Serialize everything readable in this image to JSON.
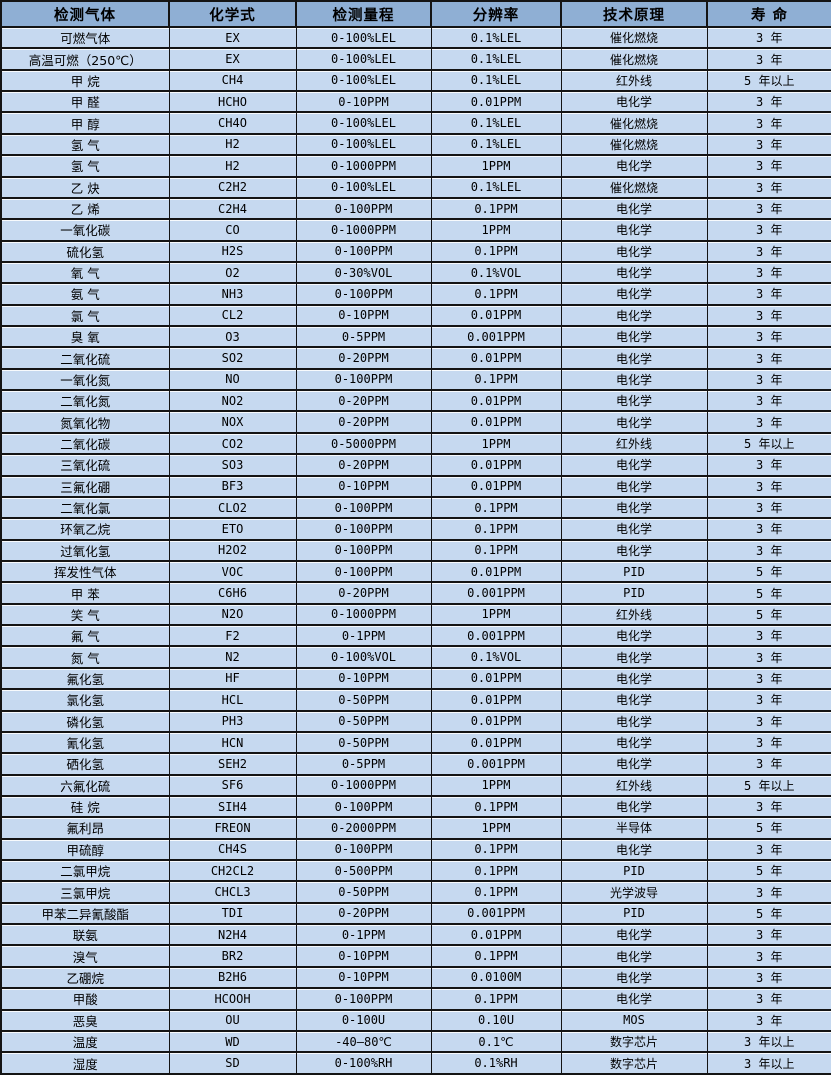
{
  "colors": {
    "header_bg": "#8FAFD4",
    "row_bg": "#C6D9F0",
    "border": "#141414",
    "text": "#000000"
  },
  "table": {
    "columns": [
      "检测气体",
      "化学式",
      "检测量程",
      "分辨率",
      "技术原理",
      "寿 命"
    ],
    "column_keys": [
      "gas",
      "formula",
      "range",
      "resolution",
      "principle",
      "lifetime"
    ],
    "rows": [
      [
        "可燃气体",
        "EX",
        "0-100%LEL",
        "0.1%LEL",
        "催化燃烧",
        "3 年"
      ],
      [
        "高温可燃（250℃）",
        "EX",
        "0-100%LEL",
        "0.1%LEL",
        "催化燃烧",
        "3 年"
      ],
      [
        "甲 烷",
        "CH4",
        "0-100%LEL",
        "0.1%LEL",
        "红外线",
        "5 年以上"
      ],
      [
        "甲 醛",
        "HCHO",
        "0-10PPM",
        "0.01PPM",
        "电化学",
        "3 年"
      ],
      [
        "甲 醇",
        "CH4O",
        "0-100%LEL",
        "0.1%LEL",
        "催化燃烧",
        "3 年"
      ],
      [
        "氢 气",
        "H2",
        "0-100%LEL",
        "0.1%LEL",
        "催化燃烧",
        "3 年"
      ],
      [
        "氢 气",
        "H2",
        "0-1000PPM",
        "1PPM",
        "电化学",
        "3 年"
      ],
      [
        "乙 炔",
        "C2H2",
        "0-100%LEL",
        "0.1%LEL",
        "催化燃烧",
        "3 年"
      ],
      [
        "乙 烯",
        "C2H4",
        "0-100PPM",
        "0.1PPM",
        "电化学",
        "3 年"
      ],
      [
        "一氧化碳",
        "CO",
        "0-1000PPM",
        "1PPM",
        "电化学",
        "3 年"
      ],
      [
        "硫化氢",
        "H2S",
        "0-100PPM",
        "0.1PPM",
        "电化学",
        "3 年"
      ],
      [
        "氧 气",
        "O2",
        "0-30%VOL",
        "0.1%VOL",
        "电化学",
        "3 年"
      ],
      [
        "氨 气",
        "NH3",
        "0-100PPM",
        "0.1PPM",
        "电化学",
        "3 年"
      ],
      [
        "氯 气",
        "CL2",
        "0-10PPM",
        "0.01PPM",
        "电化学",
        "3 年"
      ],
      [
        "臭 氧",
        "O3",
        "0-5PPM",
        "0.001PPM",
        "电化学",
        "3 年"
      ],
      [
        "二氧化硫",
        "SO2",
        "0-20PPM",
        "0.01PPM",
        "电化学",
        "3 年"
      ],
      [
        "一氧化氮",
        "NO",
        "0-100PPM",
        "0.1PPM",
        "电化学",
        "3 年"
      ],
      [
        "二氧化氮",
        "NO2",
        "0-20PPM",
        "0.01PPM",
        "电化学",
        "3 年"
      ],
      [
        "氮氧化物",
        "NOX",
        "0-20PPM",
        "0.01PPM",
        "电化学",
        "3 年"
      ],
      [
        "二氧化碳",
        "CO2",
        "0-5000PPM",
        "1PPM",
        "红外线",
        "5 年以上"
      ],
      [
        "三氧化硫",
        "SO3",
        "0-20PPM",
        "0.01PPM",
        "电化学",
        "3 年"
      ],
      [
        "三氟化硼",
        "BF3",
        "0-10PPM",
        "0.01PPM",
        "电化学",
        "3 年"
      ],
      [
        "二氧化氯",
        "CLO2",
        "0-100PPM",
        "0.1PPM",
        "电化学",
        "3 年"
      ],
      [
        "环氧乙烷",
        "ETO",
        "0-100PPM",
        "0.1PPM",
        "电化学",
        "3 年"
      ],
      [
        "过氧化氢",
        "H2O2",
        "0-100PPM",
        "0.1PPM",
        "电化学",
        "3 年"
      ],
      [
        "挥发性气体",
        "VOC",
        "0-100PPM",
        "0.01PPM",
        "PID",
        "5 年"
      ],
      [
        "甲 苯",
        "C6H6",
        "0-20PPM",
        "0.001PPM",
        "PID",
        "5 年"
      ],
      [
        "笑 气",
        "N2O",
        "0-1000PPM",
        "1PPM",
        "红外线",
        "5 年"
      ],
      [
        "氟 气",
        "F2",
        "0-1PPM",
        "0.001PPM",
        "电化学",
        "3 年"
      ],
      [
        "氮 气",
        "N2",
        "0-100%VOL",
        "0.1%VOL",
        "电化学",
        "3 年"
      ],
      [
        "氟化氢",
        "HF",
        "0-10PPM",
        "0.01PPM",
        "电化学",
        "3 年"
      ],
      [
        "氯化氢",
        "HCL",
        "0-50PPM",
        "0.01PPM",
        "电化学",
        "3 年"
      ],
      [
        "磷化氢",
        "PH3",
        "0-50PPM",
        "0.01PPM",
        "电化学",
        "3 年"
      ],
      [
        "氰化氢",
        "HCN",
        "0-50PPM",
        "0.01PPM",
        "电化学",
        "3 年"
      ],
      [
        "硒化氢",
        "SEH2",
        "0-5PPM",
        "0.001PPM",
        "电化学",
        "3 年"
      ],
      [
        "六氟化硫",
        "SF6",
        "0-1000PPM",
        "1PPM",
        "红外线",
        "5 年以上"
      ],
      [
        "硅 烷",
        "SIH4",
        "0-100PPM",
        "0.1PPM",
        "电化学",
        "3 年"
      ],
      [
        "氟利昂",
        "FREON",
        "0-2000PPM",
        "1PPM",
        "半导体",
        "5 年"
      ],
      [
        "甲硫醇",
        "CH4S",
        "0-100PPM",
        "0.1PPM",
        "电化学",
        "3 年"
      ],
      [
        "二氯甲烷",
        "CH2CL2",
        "0-500PPM",
        "0.1PPM",
        "PID",
        "5 年"
      ],
      [
        "三氯甲烷",
        "CHCL3",
        "0-50PPM",
        "0.1PPM",
        "光学波导",
        "3 年"
      ],
      [
        "甲苯二异氰酸酯",
        "TDI",
        "0-20PPM",
        "0.001PPM",
        "PID",
        "5 年"
      ],
      [
        "联氨",
        "N2H4",
        "0-1PPM",
        "0.01PPM",
        "电化学",
        "3 年"
      ],
      [
        "溴气",
        "BR2",
        "0-10PPM",
        "0.1PPM",
        "电化学",
        "3 年"
      ],
      [
        "乙硼烷",
        "B2H6",
        "0-10PPM",
        "0.0100M",
        "电化学",
        "3 年"
      ],
      [
        "甲酸",
        "HCOOH",
        "0-100PPM",
        "0.1PPM",
        "电化学",
        "3 年"
      ],
      [
        "恶臭",
        "OU",
        "0-100U",
        "0.10U",
        "MOS",
        "3 年"
      ],
      [
        "温度",
        "WD",
        "-40—80℃",
        "0.1℃",
        "数字芯片",
        "3 年以上"
      ],
      [
        "湿度",
        "SD",
        "0-100%RH",
        "0.1%RH",
        "数字芯片",
        "3 年以上"
      ]
    ]
  }
}
